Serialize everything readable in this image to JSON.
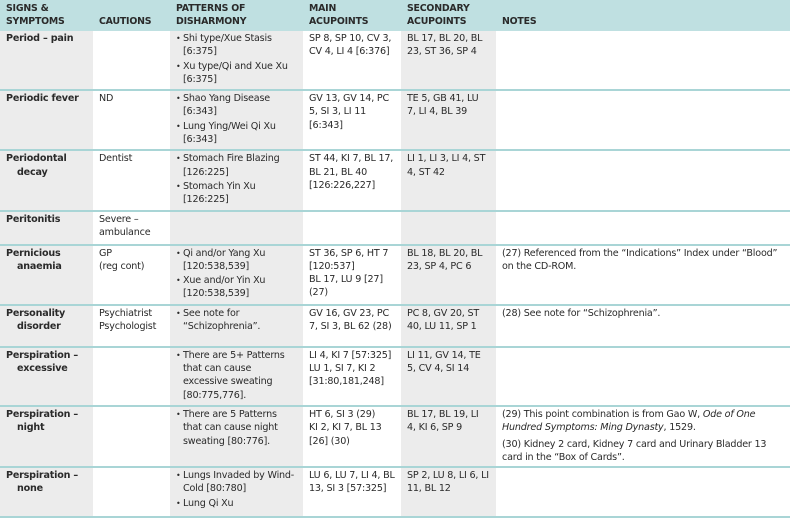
{
  "headers": [
    "SIGNS & SYMPTOMS",
    "CAUTIONS",
    "PATTERNS OF DISHARMONY",
    "MAIN ACUPOINTS",
    "SECONDARY ACUPOINTS",
    "NOTES"
  ],
  "rows": [
    {
      "sym": [
        "Period – pain"
      ],
      "caution": [],
      "patterns": [
        "Shi type/Xue Stasis [6:375]",
        "Xu type/Qi and Xue Xu [6:375]"
      ],
      "main": [
        "SP 8, SP 10, CV 3, CV 4, LI 4 [6:376]"
      ],
      "secondary": [
        "BL 17, BL 20, BL 23, ST 36, SP 4"
      ],
      "notes": [],
      "h": 53
    },
    {
      "sym": [
        "Periodic fever"
      ],
      "caution": [
        "ND"
      ],
      "patterns": [
        "Shao Yang Disease [6:343]",
        "Lung Ying/Wei Qi Xu [6:343]"
      ],
      "main": [
        "GV 13, GV 14, PC 5, SI 3, LI 11 [6:343]"
      ],
      "secondary": [
        "TE 5, GB 41, LU 7, LI 4, BL 39"
      ],
      "notes": [],
      "h": 55
    },
    {
      "sym": [
        "Periodontal",
        "decay"
      ],
      "caution": [
        "Dentist"
      ],
      "patterns": [
        "Stomach Fire Blazing [126:225]",
        "Stomach Yin Xu [126:225]"
      ],
      "main": [
        "ST 44, KI 7, BL 17, BL 21, BL 40 [126:226,227]"
      ],
      "secondary": [
        "LI 1, LI 3, LI 4, ST 4, ST 42"
      ],
      "notes": [],
      "h": 54
    },
    {
      "sym": [
        "Peritonitis"
      ],
      "caution": [
        "Severe – ambulance"
      ],
      "patterns": [],
      "main": [],
      "secondary": [],
      "notes": [],
      "h": 34
    },
    {
      "sym": [
        "Pernicious",
        "anaemia"
      ],
      "caution": [
        "GP",
        "(reg cont)"
      ],
      "patterns": [
        "Qi and/or Yang Xu [120:538,539]",
        "Xue and/or Yin Xu [120:538,539]"
      ],
      "main": [
        "ST 36, SP 6, HT 7 [120:537]",
        "BL 17, LU 9 [27] (27)"
      ],
      "secondary": [
        "BL 18, BL 20, BL 23, SP 4, PC 6"
      ],
      "notes": [
        "(27) Referenced from the “Indications” Index under “Blood” on the CD-ROM."
      ],
      "h": 59
    },
    {
      "sym": [
        "Personality",
        "disorder"
      ],
      "caution": [
        "Psychiatrist",
        "Psychologist"
      ],
      "patterns": [
        "See note for “Schizophrenia”."
      ],
      "main": [
        "GV 16, GV 23, PC 7, SI 3, BL 62 (28)"
      ],
      "secondary": [
        "PC 8, GV 20, ST 40, LU 11, SP 1"
      ],
      "notes": [
        "(28) See note for “Schizophrenia”."
      ],
      "h": 42
    },
    {
      "sym": [
        "Perspiration –",
        "excessive"
      ],
      "caution": [],
      "patterns": [
        "There are 5+ Patterns that can cause excessive sweating [80:775,776]."
      ],
      "main": [
        "LI 4, KI 7 [57:325]",
        "LU 1, SI 7, KI 2 [31:80,181,248]"
      ],
      "secondary": [
        "LI 11, GV 14, TE 5, CV 4, SI 14"
      ],
      "notes": [],
      "h": 43
    },
    {
      "sym": [
        "Perspiration –",
        "night"
      ],
      "caution": [],
      "patterns": [
        "There are 5 Patterns that can cause night sweating [80:776]."
      ],
      "main": [
        "HT 6, SI 3 (29)",
        "KI 2, KI 7, BL 13 [26] (30)"
      ],
      "secondary": [
        "BL 17, BL 19, LI 4, KI 6, SP 9"
      ],
      "notes": [
        "(29) This point combination is from Gao W, ",
        "Ode of One Hundred Symptoms: Ming Dynasty",
        ", 1529.",
        "(30) Kidney 2 card, Kidney 7 card and Urinary Bladder 13 card in the “Box of Cards”."
      ],
      "h": 57
    },
    {
      "sym": [
        "Perspiration –",
        "none"
      ],
      "caution": [],
      "patterns": [
        "Lungs Invaded by Wind-Cold [80:780]",
        "Lung Qi Xu"
      ],
      "main": [
        "LU 6, LU 7, LI 4, BL 13, SI 3 [57:325]"
      ],
      "secondary": [
        "SP 2, LU 8, LI 6, LI 11, BL 12"
      ],
      "notes": [],
      "h": 50
    }
  ]
}
